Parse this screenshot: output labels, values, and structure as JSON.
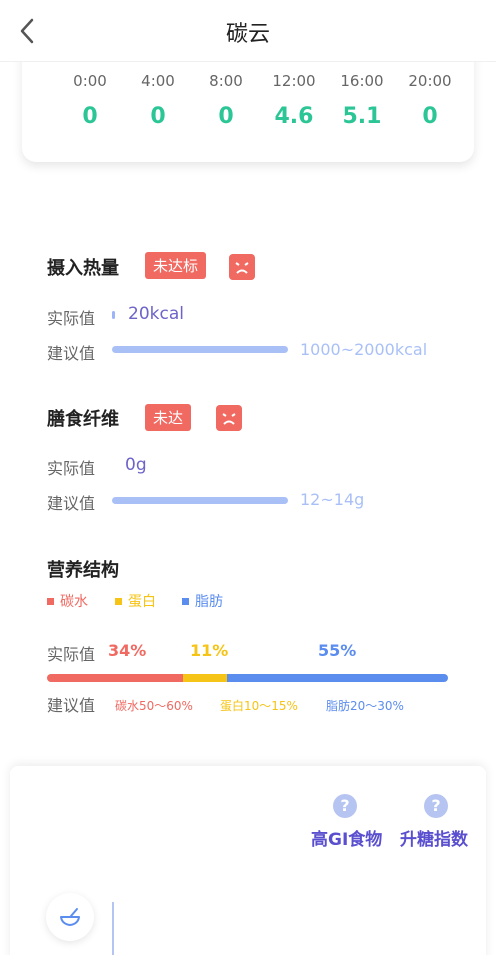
{
  "header": {
    "title": "碳云"
  },
  "hourly": {
    "times": [
      "0:00",
      "4:00",
      "8:00",
      "12:00",
      "16:00",
      "20:00"
    ],
    "values": [
      "0",
      "0",
      "0",
      "4.6",
      "5.1",
      "0"
    ]
  },
  "calories": {
    "title": "摄入热量",
    "badge": "未达标",
    "actual_label": "实际值",
    "actual_value": "20kcal",
    "suggest_label": "建议值",
    "suggest_value": "1000~2000kcal"
  },
  "fiber": {
    "title": "膳食纤维",
    "badge": "未达",
    "actual_label": "实际值",
    "actual_value": "0g",
    "suggest_label": "建议值",
    "suggest_value": "12~14g"
  },
  "nutrition": {
    "title": "营养结构",
    "legend": [
      {
        "label": "碳水",
        "color": "#f06a62"
      },
      {
        "label": "蛋白",
        "color": "#f5c416"
      },
      {
        "label": "脂肪",
        "color": "#5b8def"
      }
    ],
    "actual_label": "实际值",
    "carb_pct": "34%",
    "protein_pct": "11%",
    "fat_pct": "55%",
    "shares": [
      34,
      11,
      55
    ],
    "suggest_label": "建议值",
    "suggest_carb": "碳水50～60%",
    "suggest_protein": "蛋白10～15%",
    "suggest_fat": "脂肪20～30%"
  },
  "bottom": {
    "high_gi_label": "高GI食物",
    "glycemic_label": "升糖指数",
    "help_glyph": "?"
  }
}
